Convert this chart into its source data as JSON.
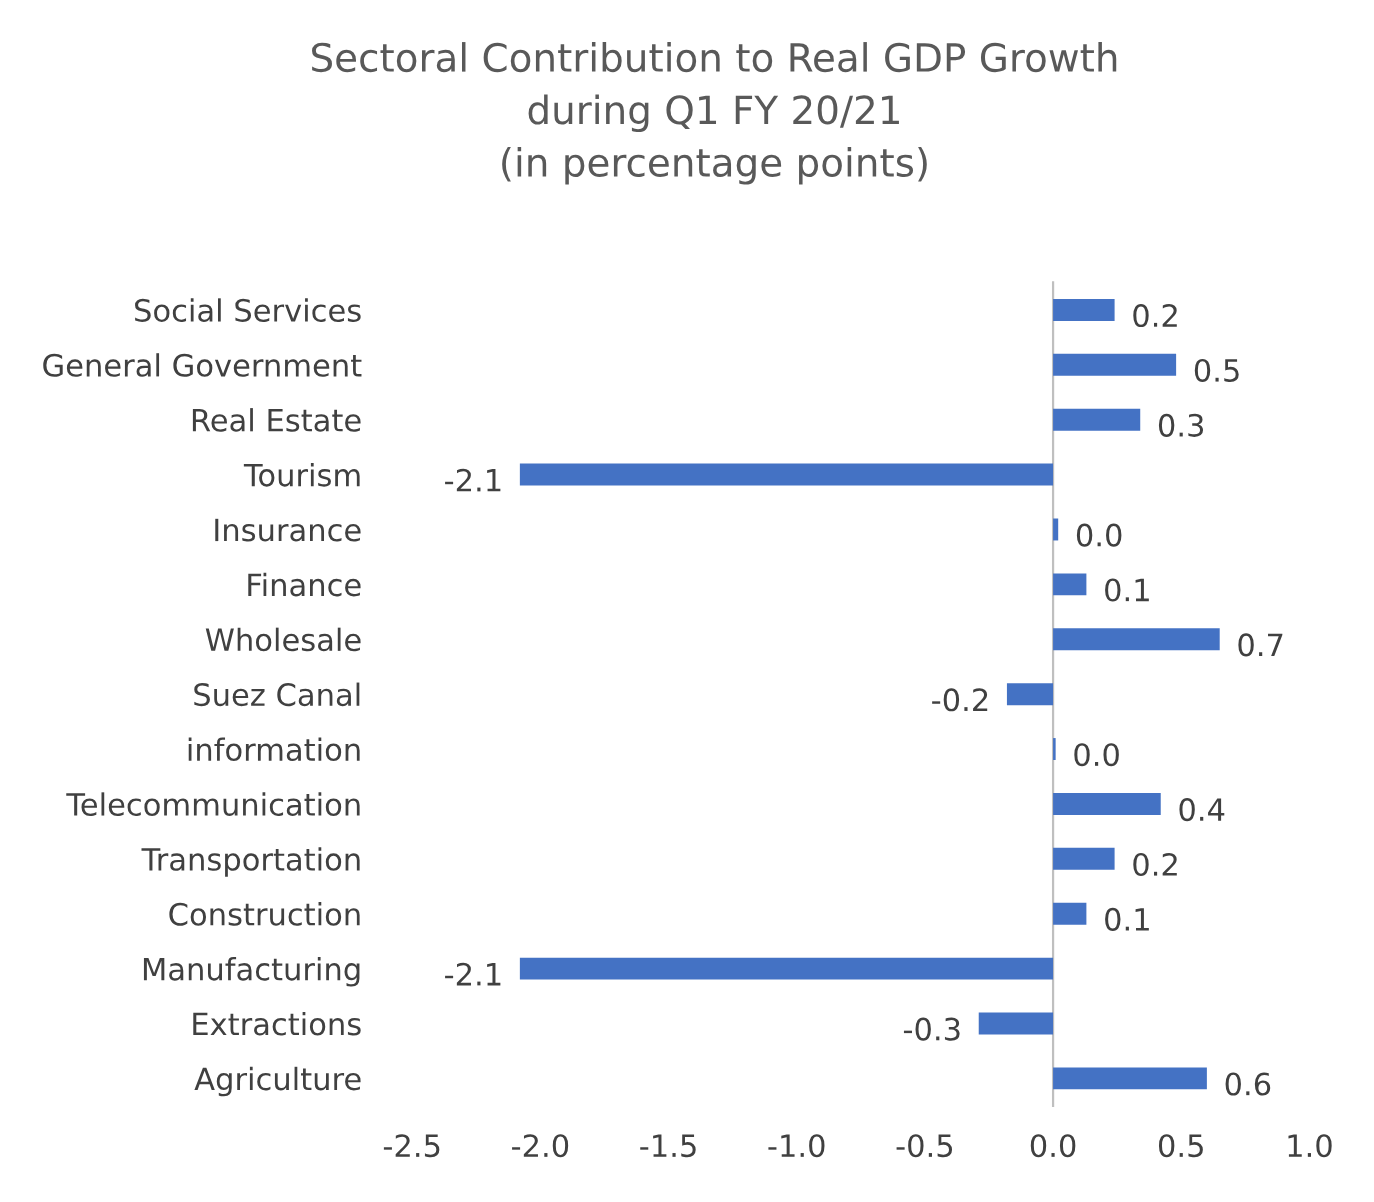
{
  "chart_data": {
    "type": "bar",
    "orientation": "horizontal",
    "title": "Sectoral Contribution to Real GDP Growth\nduring Q1 FY 20/21\n(in percentage points)",
    "categories": [
      "Social Services",
      "General Government",
      "Real Estate",
      "Tourism",
      "Insurance",
      "Finance",
      "Wholesale",
      "Suez Canal",
      "information",
      "Telecommunication",
      "Transportation",
      "Construction",
      "Manufacturing",
      "Extractions",
      "Agriculture"
    ],
    "values": [
      0.24,
      0.48,
      0.34,
      -2.08,
      0.02,
      0.13,
      0.65,
      -0.18,
      0.01,
      0.42,
      0.24,
      0.13,
      -2.08,
      -0.29,
      0.6
    ],
    "value_labels": [
      "0.2",
      "0.5",
      "0.3",
      "-2.1",
      "0.0",
      "0.1",
      "0.7",
      "-0.2",
      "0.0",
      "0.4",
      "0.2",
      "0.1",
      "-2.1",
      "-0.3",
      "0.6"
    ],
    "color": "#4472c4",
    "xlim": [
      -2.5,
      1.0
    ],
    "xticks": [
      {
        "value": -2.5,
        "label": "-2.5"
      },
      {
        "value": -2.0,
        "label": "-2.0"
      },
      {
        "value": -1.5,
        "label": "-1.5"
      },
      {
        "value": -1.0,
        "label": "-1.0"
      },
      {
        "value": -0.5,
        "label": "-0.5"
      },
      {
        "value": 0.0,
        "label": "0.0"
      },
      {
        "value": 0.5,
        "label": "0.5"
      },
      {
        "value": 1.0,
        "label": "1.0"
      }
    ],
    "legend": false
  }
}
